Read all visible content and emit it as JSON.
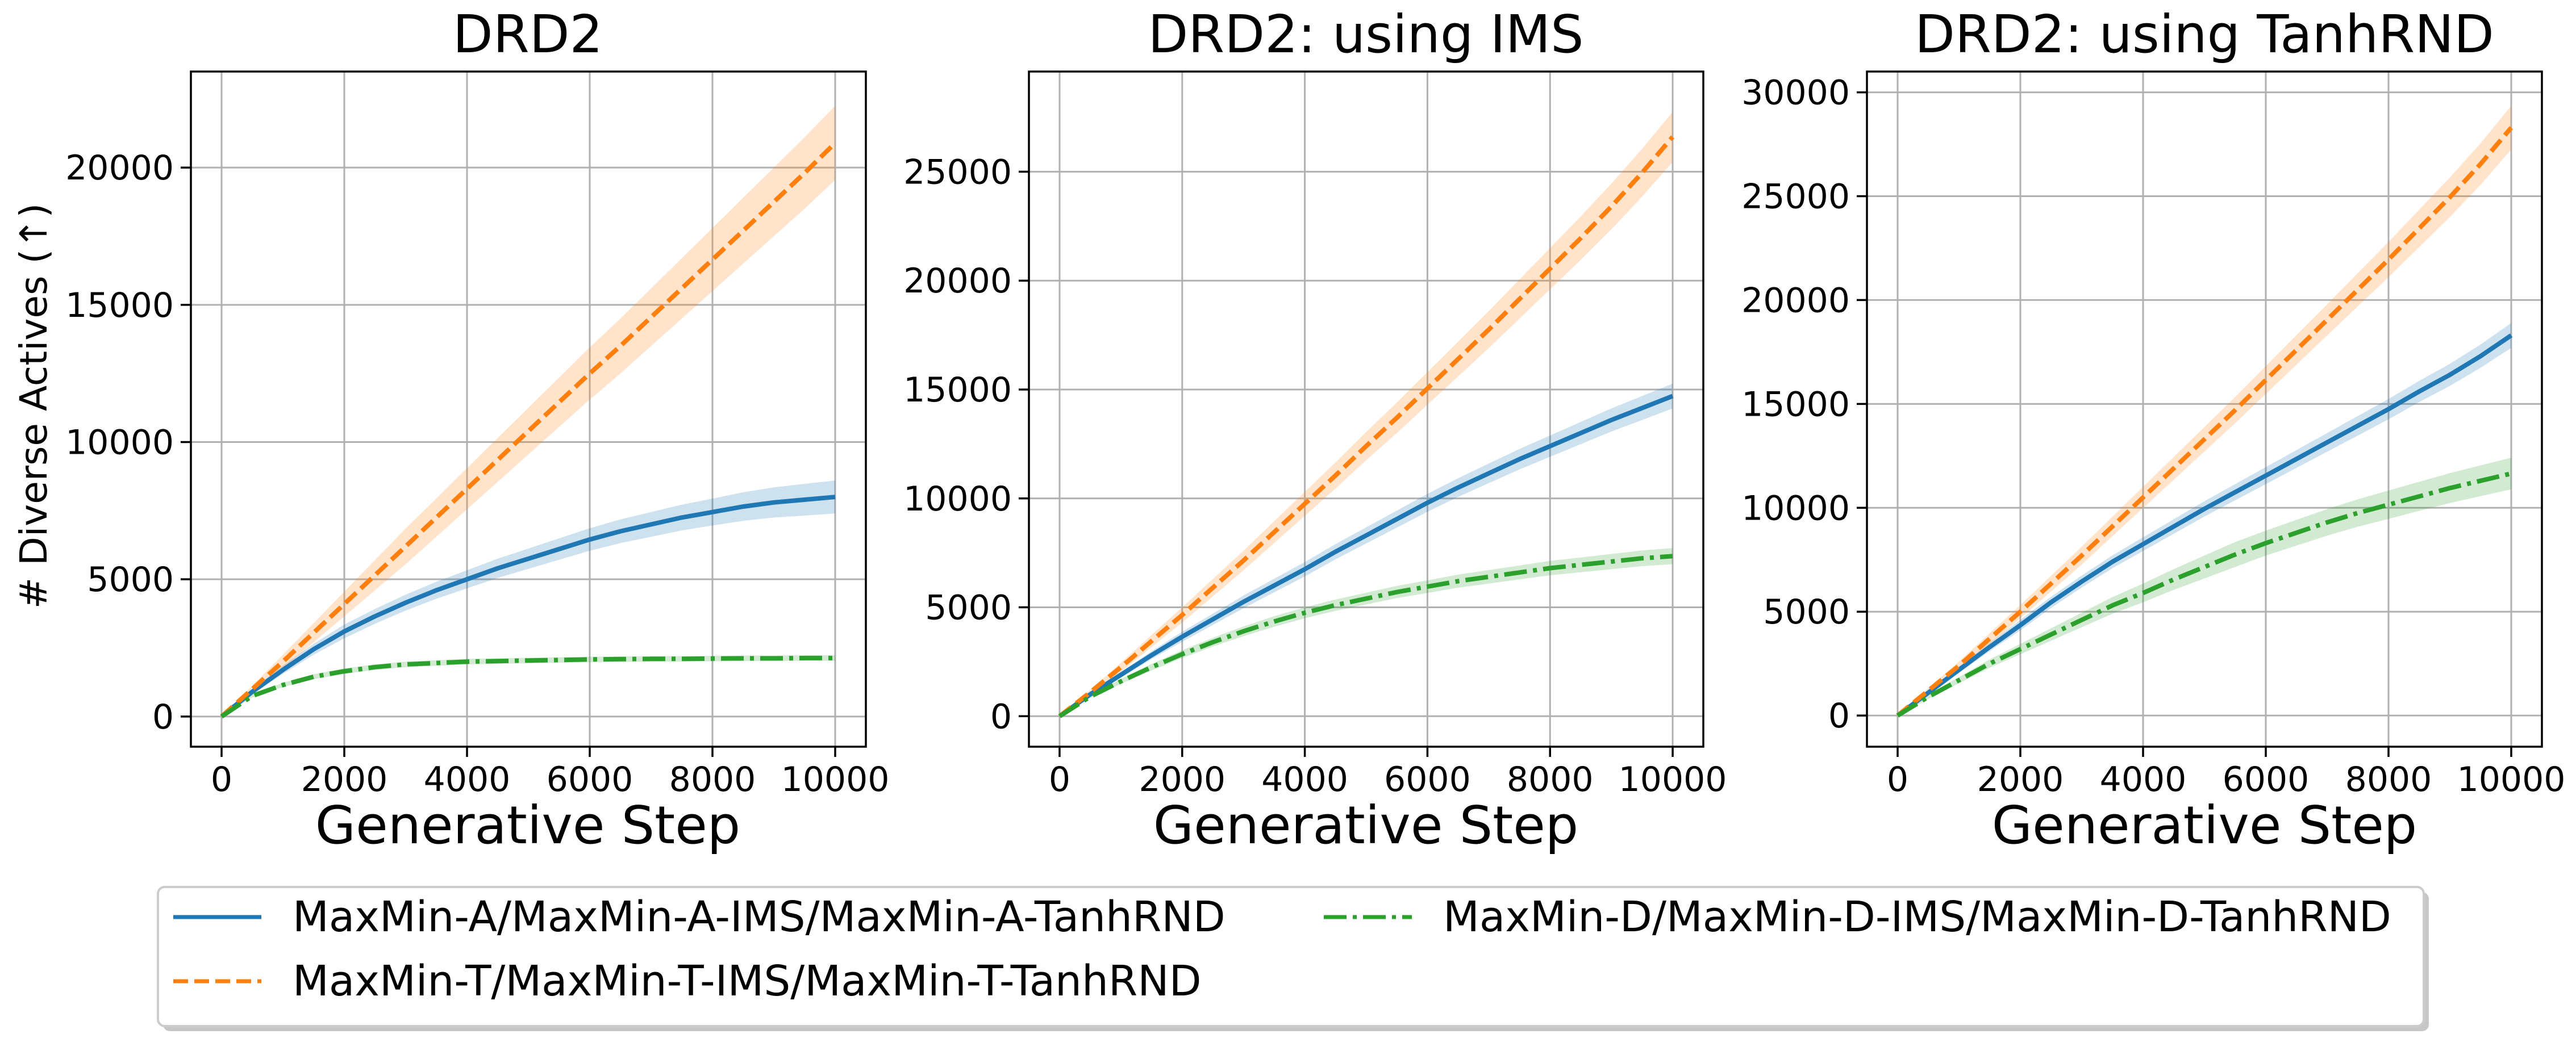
{
  "figure": {
    "shared_ylabel": "# Diverse Actives (↑)"
  },
  "colors": {
    "maxmin_a": "#1f77b4",
    "maxmin_t": "#ff7f0e",
    "maxmin_d": "#2ca02c",
    "grid": "#b0b0b0"
  },
  "legend": {
    "entries": [
      {
        "key": "maxmin_a",
        "label": "MaxMin-A/MaxMin-A-IMS/MaxMin-A-TanhRND",
        "style": "solid"
      },
      {
        "key": "maxmin_t",
        "label": "MaxMin-T/MaxMin-T-IMS/MaxMin-T-TanhRND",
        "style": "dashed"
      },
      {
        "key": "maxmin_d",
        "label": "MaxMin-D/MaxMin-D-IMS/MaxMin-D-TanhRND",
        "style": "dashdot"
      }
    ]
  },
  "chart_data": [
    {
      "type": "line",
      "title": "DRD2",
      "xlabel": "Generative Step",
      "ylabel": "# Diverse Actives (↑)",
      "xlim": [
        -500,
        10500
      ],
      "ylim": [
        -1100,
        23500
      ],
      "xticks": [
        0,
        2000,
        4000,
        6000,
        8000,
        10000
      ],
      "yticks": [
        0,
        5000,
        10000,
        15000,
        20000
      ],
      "grid": true,
      "x": [
        0,
        500,
        1000,
        1500,
        2000,
        2500,
        3000,
        3500,
        4000,
        4500,
        5000,
        5500,
        6000,
        6500,
        7000,
        7500,
        8000,
        8500,
        9000,
        9500,
        10000
      ],
      "series": [
        {
          "name": "MaxMin-A",
          "color_key": "maxmin_a",
          "style": "solid",
          "values": [
            0,
            900,
            1700,
            2450,
            3100,
            3650,
            4150,
            4600,
            5000,
            5400,
            5750,
            6100,
            6450,
            6750,
            7000,
            7250,
            7450,
            7650,
            7800,
            7900,
            8000
          ],
          "band": [
            0,
            80,
            150,
            200,
            250,
            270,
            290,
            310,
            330,
            350,
            370,
            390,
            410,
            430,
            450,
            470,
            490,
            520,
            550,
            580,
            600
          ]
        },
        {
          "name": "MaxMin-T",
          "color_key": "maxmin_t",
          "style": "dashed",
          "values": [
            0,
            1000,
            2000,
            3050,
            4100,
            5150,
            6200,
            7250,
            8300,
            9350,
            10400,
            11450,
            12500,
            13500,
            14550,
            15600,
            16650,
            17700,
            18750,
            19800,
            20900
          ],
          "band": [
            0,
            120,
            250,
            350,
            450,
            550,
            650,
            700,
            750,
            800,
            850,
            900,
            950,
            1000,
            1050,
            1100,
            1150,
            1200,
            1250,
            1300,
            1350
          ]
        },
        {
          "name": "MaxMin-D",
          "color_key": "maxmin_d",
          "style": "dashdot",
          "values": [
            0,
            750,
            1150,
            1450,
            1650,
            1800,
            1900,
            1950,
            2000,
            2020,
            2040,
            2060,
            2080,
            2090,
            2100,
            2100,
            2110,
            2120,
            2120,
            2130,
            2130
          ],
          "band": [
            0,
            60,
            80,
            90,
            100,
            100,
            100,
            100,
            100,
            100,
            100,
            100,
            100,
            100,
            100,
            100,
            100,
            100,
            100,
            100,
            100
          ]
        }
      ]
    },
    {
      "type": "line",
      "title": "DRD2: using IMS",
      "xlabel": "Generative Step",
      "ylabel": "",
      "xlim": [
        -500,
        10500
      ],
      "ylim": [
        -1400,
        29600
      ],
      "xticks": [
        0,
        2000,
        4000,
        6000,
        8000,
        10000
      ],
      "yticks": [
        0,
        5000,
        10000,
        15000,
        20000,
        25000
      ],
      "grid": true,
      "x": [
        0,
        500,
        1000,
        1500,
        2000,
        2500,
        3000,
        3500,
        4000,
        4500,
        5000,
        5500,
        6000,
        6500,
        7000,
        7500,
        8000,
        8500,
        9000,
        9500,
        10000
      ],
      "series": [
        {
          "name": "MaxMin-A-IMS",
          "color_key": "maxmin_a",
          "style": "solid",
          "values": [
            0,
            1000,
            1900,
            2800,
            3650,
            4450,
            5250,
            6000,
            6750,
            7550,
            8300,
            9050,
            9800,
            10500,
            11150,
            11800,
            12400,
            13000,
            13600,
            14150,
            14700
          ],
          "band": [
            0,
            80,
            130,
            180,
            230,
            260,
            290,
            310,
            330,
            350,
            370,
            390,
            410,
            430,
            450,
            470,
            490,
            510,
            530,
            550,
            570
          ]
        },
        {
          "name": "MaxMin-T-IMS",
          "color_key": "maxmin_t",
          "style": "dashed",
          "values": [
            0,
            1100,
            2250,
            3450,
            4650,
            5900,
            7150,
            8450,
            9750,
            11050,
            12400,
            13700,
            15050,
            16400,
            17750,
            19150,
            20550,
            21950,
            23400,
            24950,
            26600
          ],
          "band": [
            0,
            110,
            200,
            280,
            350,
            400,
            450,
            500,
            550,
            600,
            650,
            700,
            750,
            800,
            850,
            900,
            950,
            1000,
            1050,
            1100,
            1150
          ]
        },
        {
          "name": "MaxMin-D-IMS",
          "color_key": "maxmin_d",
          "style": "dashdot",
          "values": [
            0,
            900,
            1600,
            2250,
            2850,
            3400,
            3900,
            4350,
            4750,
            5100,
            5400,
            5700,
            5950,
            6200,
            6400,
            6600,
            6800,
            6950,
            7100,
            7250,
            7350
          ],
          "band": [
            0,
            70,
            110,
            150,
            180,
            200,
            220,
            240,
            250,
            260,
            270,
            280,
            290,
            300,
            310,
            320,
            330,
            340,
            350,
            360,
            370
          ]
        }
      ]
    },
    {
      "type": "line",
      "title": "DRD2: using TanhRND",
      "xlabel": "Generative Step",
      "ylabel": "",
      "xlim": [
        -500,
        10500
      ],
      "ylim": [
        -1500,
        31000
      ],
      "xticks": [
        0,
        2000,
        4000,
        6000,
        8000,
        10000
      ],
      "yticks": [
        0,
        5000,
        10000,
        15000,
        20000,
        25000,
        30000
      ],
      "grid": true,
      "x": [
        0,
        500,
        1000,
        1500,
        2000,
        2500,
        3000,
        3500,
        4000,
        4500,
        5000,
        5500,
        6000,
        6500,
        7000,
        7500,
        8000,
        8500,
        9000,
        9500,
        10000
      ],
      "series": [
        {
          "name": "MaxMin-A-TanhRND",
          "color_key": "maxmin_a",
          "style": "solid",
          "values": [
            0,
            1100,
            2200,
            3300,
            4350,
            5450,
            6450,
            7400,
            8250,
            9100,
            9950,
            10750,
            11550,
            12350,
            13150,
            13950,
            14750,
            15600,
            16400,
            17300,
            18300
          ],
          "band": [
            0,
            100,
            150,
            200,
            250,
            270,
            290,
            310,
            330,
            350,
            370,
            390,
            410,
            430,
            450,
            470,
            490,
            510,
            530,
            560,
            600
          ]
        },
        {
          "name": "MaxMin-T-TanhRND",
          "color_key": "maxmin_t",
          "style": "dashed",
          "values": [
            0,
            1200,
            2400,
            3700,
            5000,
            6350,
            7700,
            9100,
            10500,
            11900,
            13300,
            14700,
            16150,
            17600,
            19050,
            20500,
            21950,
            23450,
            24950,
            26550,
            28300
          ],
          "band": [
            0,
            120,
            200,
            260,
            320,
            380,
            430,
            470,
            510,
            550,
            590,
            630,
            670,
            710,
            750,
            800,
            850,
            900,
            950,
            1000,
            1050
          ]
        },
        {
          "name": "MaxMin-D-TanhRND",
          "color_key": "maxmin_d",
          "style": "dashdot",
          "values": [
            0,
            900,
            1700,
            2500,
            3200,
            3900,
            4600,
            5300,
            5900,
            6550,
            7150,
            7750,
            8300,
            8800,
            9300,
            9750,
            10150,
            10550,
            10950,
            11300,
            11650
          ],
          "band": [
            0,
            100,
            150,
            200,
            250,
            300,
            350,
            400,
            450,
            500,
            550,
            600,
            600,
            620,
            640,
            660,
            680,
            700,
            720,
            740,
            760
          ]
        }
      ]
    }
  ]
}
